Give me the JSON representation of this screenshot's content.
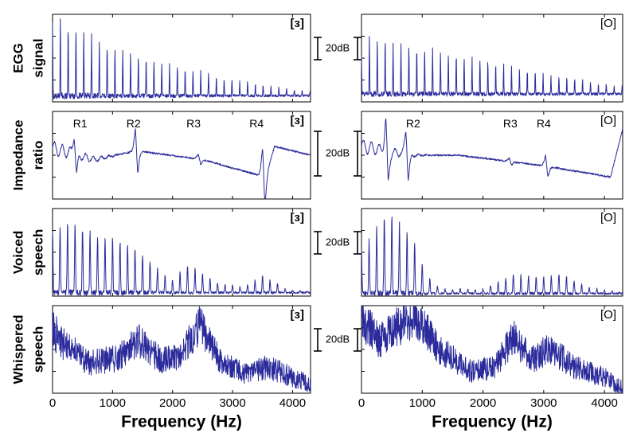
{
  "chart_data": {
    "type": "line",
    "x_unit": "Hz",
    "xlim": [
      0,
      4300
    ],
    "x_ticks": [
      "0",
      "1000",
      "2000",
      "3000",
      "4000"
    ],
    "xlabel": "Frequency (Hz)",
    "line_color": "#2b2b9c",
    "columns": [
      {
        "vowel": "[ɜ]"
      },
      {
        "vowel": "[O]"
      }
    ],
    "rows": [
      {
        "label_lines": [
          "EGG",
          "signal"
        ],
        "scale_bar": "20dB",
        "panels": [
          {
            "kind": "harmonics",
            "f0": 130,
            "envelope": [
              [
                0,
                0.88
              ],
              [
                130,
                0.95
              ],
              [
                1000,
                0.62
              ],
              [
                2000,
                0.42
              ],
              [
                3000,
                0.25
              ],
              [
                4300,
                0.12
              ]
            ],
            "floor": 0.07,
            "width": 0.13,
            "peak_labels": [],
            "peaks": []
          },
          {
            "kind": "harmonics",
            "f0": 130,
            "envelope": [
              [
                0,
                0.55
              ],
              [
                130,
                0.75
              ],
              [
                1000,
                0.62
              ],
              [
                2000,
                0.48
              ],
              [
                3000,
                0.32
              ],
              [
                4300,
                0.17
              ]
            ],
            "floor": 0.09,
            "width": 0.13,
            "peak_labels": [],
            "peaks": []
          }
        ]
      },
      {
        "label_lines": [
          "Impedance",
          "ratio"
        ],
        "scale_bar": "20dB",
        "panels": [
          {
            "kind": "impedance",
            "base": [
              [
                0,
                0.58
              ],
              [
                700,
                0.45
              ],
              [
                1400,
                0.55
              ],
              [
                2500,
                0.45
              ],
              [
                3550,
                0.25
              ],
              [
                3700,
                0.6
              ],
              [
                4300,
                0.5
              ]
            ],
            "resonances": [
              [
                380,
                0.28
              ],
              [
                1400,
                0.32
              ],
              [
                2450,
                0.07
              ],
              [
                3520,
                0.4
              ]
            ],
            "peak_labels": [
              {
                "text": "R1",
                "x": 460
              },
              {
                "text": "R2",
                "x": 1350
              },
              {
                "text": "R3",
                "x": 2350
              },
              {
                "text": "R4",
                "x": 3400
              }
            ]
          },
          {
            "kind": "impedance",
            "base": [
              [
                0,
                0.6
              ],
              [
                800,
                0.5
              ],
              [
                1600,
                0.5
              ],
              [
                3000,
                0.38
              ],
              [
                4100,
                0.25
              ],
              [
                4300,
                0.8
              ]
            ],
            "resonances": [
              [
                420,
                0.45
              ],
              [
                750,
                0.35
              ],
              [
                2450,
                0.05
              ],
              [
                3050,
                0.15
              ]
            ],
            "peak_labels": [
              {
                "text": "R2",
                "x": 850
              },
              {
                "text": "R3",
                "x": 2450
              },
              {
                "text": "R4",
                "x": 3000
              }
            ]
          }
        ]
      },
      {
        "label_lines": [
          "Voiced",
          "speech"
        ],
        "scale_bar": "20dB",
        "panels": [
          {
            "kind": "harmonics",
            "f0": 125,
            "envelope": [
              [
                0,
                0.75
              ],
              [
                300,
                0.85
              ],
              [
                700,
                0.7
              ],
              [
                1300,
                0.6
              ],
              [
                1700,
                0.35
              ],
              [
                2000,
                0.18
              ],
              [
                2300,
                0.38
              ],
              [
                2700,
                0.15
              ],
              [
                3200,
                0.1
              ],
              [
                3500,
                0.24
              ],
              [
                3900,
                0.08
              ],
              [
                4300,
                0.05
              ]
            ],
            "floor": 0.04,
            "width": 0.24,
            "peak_labels": [],
            "peaks": []
          },
          {
            "kind": "harmonics",
            "f0": 125,
            "envelope": [
              [
                0,
                0.5
              ],
              [
                400,
                0.95
              ],
              [
                800,
                0.72
              ],
              [
                1100,
                0.22
              ],
              [
                1300,
                0.08
              ],
              [
                2000,
                0.08
              ],
              [
                2500,
                0.25
              ],
              [
                3000,
                0.22
              ],
              [
                3300,
                0.26
              ],
              [
                3700,
                0.1
              ],
              [
                4300,
                0.04
              ]
            ],
            "floor": 0.03,
            "width": 0.24,
            "peak_labels": [],
            "peaks": []
          }
        ]
      },
      {
        "label_lines": [
          "Whispered",
          "speech"
        ],
        "scale_bar": "20dB",
        "panels": [
          {
            "kind": "noise",
            "envelope": [
              [
                0,
                0.72
              ],
              [
                200,
                0.55
              ],
              [
                600,
                0.35
              ],
              [
                1100,
                0.4
              ],
              [
                1450,
                0.6
              ],
              [
                1800,
                0.38
              ],
              [
                2100,
                0.4
              ],
              [
                2450,
                0.78
              ],
              [
                2800,
                0.35
              ],
              [
                3200,
                0.22
              ],
              [
                3600,
                0.3
              ],
              [
                4000,
                0.18
              ],
              [
                4300,
                0.1
              ]
            ],
            "noise": 0.2,
            "peak_labels": [],
            "peaks": []
          },
          {
            "kind": "noise",
            "envelope": [
              [
                0,
                0.85
              ],
              [
                300,
                0.6
              ],
              [
                700,
                0.82
              ],
              [
                900,
                0.85
              ],
              [
                1300,
                0.5
              ],
              [
                1800,
                0.25
              ],
              [
                2200,
                0.3
              ],
              [
                2500,
                0.65
              ],
              [
                2800,
                0.38
              ],
              [
                3100,
                0.52
              ],
              [
                3500,
                0.3
              ],
              [
                4000,
                0.18
              ],
              [
                4300,
                0.05
              ]
            ],
            "noise": 0.2,
            "peak_labels": [],
            "peaks": []
          }
        ]
      }
    ]
  }
}
